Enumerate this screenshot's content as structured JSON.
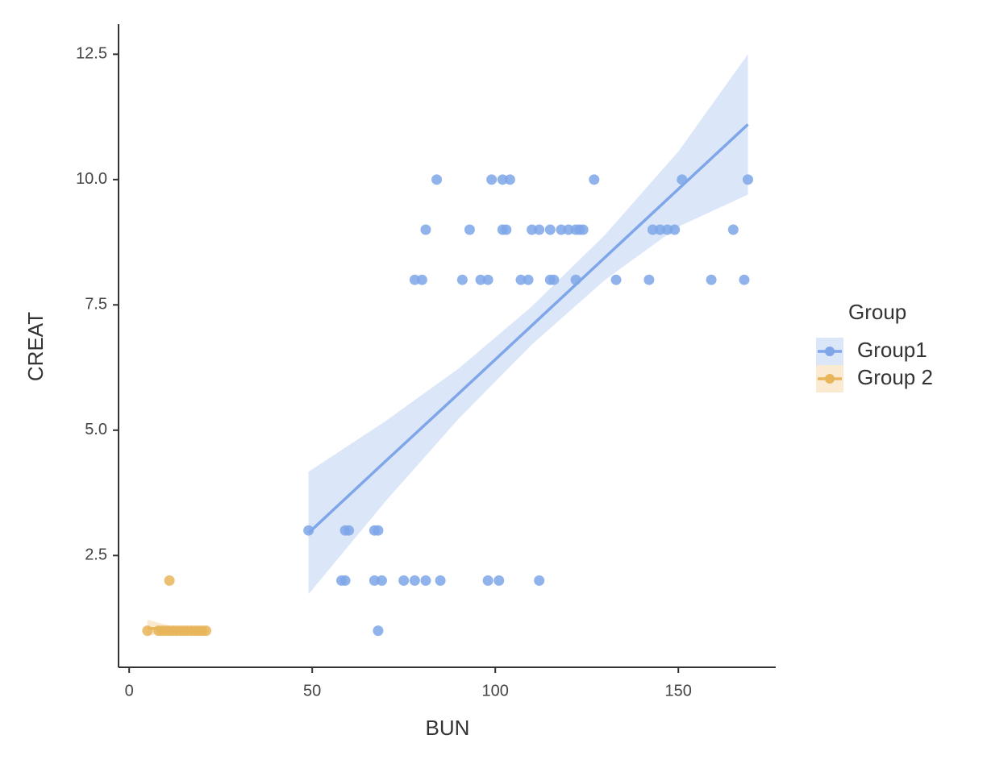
{
  "chart_data": {
    "type": "scatter",
    "xlabel": "BUN",
    "ylabel": "CREAT",
    "legend_title": "Group",
    "legend": "right",
    "xlim": [
      -2.9,
      176.6
    ],
    "ylim": [
      0.27,
      13.1
    ],
    "xticks": [
      0,
      50,
      100,
      150
    ],
    "yticks": [
      2.5,
      {
        "value": 5,
        "label": "5.0"
      },
      7.5,
      {
        "value": 10,
        "label": "10.0"
      },
      12.5
    ],
    "series": [
      {
        "name": "Group1",
        "color": "#7ea6e8",
        "x": [
          84,
          99,
          102,
          104,
          127,
          151,
          169,
          81,
          93,
          102,
          103,
          110,
          112,
          115,
          118,
          120,
          122,
          123,
          124,
          143,
          145,
          147,
          149,
          165,
          78,
          80,
          91,
          96,
          98,
          107,
          109,
          115,
          116,
          122,
          133,
          142,
          159,
          168,
          49,
          59,
          60,
          67,
          68,
          58,
          59,
          67,
          69,
          75,
          78,
          81,
          85,
          98,
          101,
          112,
          68
        ],
        "y": [
          10,
          10,
          10,
          10,
          10,
          10,
          10,
          9,
          9,
          9,
          9,
          9,
          9,
          9,
          9,
          9,
          9,
          9,
          9,
          9,
          9,
          9,
          9,
          9,
          8,
          8,
          8,
          8,
          8,
          8,
          8,
          8,
          8,
          8,
          8,
          8,
          8,
          8,
          3,
          3,
          3,
          3,
          3,
          2,
          2,
          2,
          2,
          2,
          2,
          2,
          2,
          2,
          2,
          2,
          1
        ],
        "fit": {
          "x": [
            49,
            70,
            90,
            110,
            130,
            150,
            169
          ],
          "y": [
            2.95,
            4.38,
            5.73,
            7.09,
            8.45,
            9.81,
            11.1
          ],
          "lower": [
            1.73,
            3.58,
            5.23,
            6.71,
            8.0,
            9.06,
            9.7
          ],
          "upper": [
            4.17,
            5.18,
            6.23,
            7.47,
            8.9,
            10.56,
            12.5
          ]
        }
      },
      {
        "name": "Group 2",
        "color": "#e8b55a",
        "x": [
          5,
          8,
          9,
          10,
          11,
          12,
          13,
          14,
          15,
          16,
          17,
          18,
          19,
          20,
          21,
          11
        ],
        "y": [
          1,
          1,
          1,
          1,
          1,
          1,
          1,
          1,
          1,
          1,
          1,
          1,
          1,
          1,
          1,
          2
        ],
        "fit": {
          "x": [
            5,
            13,
            21
          ],
          "y": [
            1.05,
            1.02,
            0.98
          ],
          "lower": [
            0.9,
            0.98,
            0.9
          ],
          "upper": [
            1.22,
            1.06,
            1.06
          ]
        }
      }
    ]
  }
}
